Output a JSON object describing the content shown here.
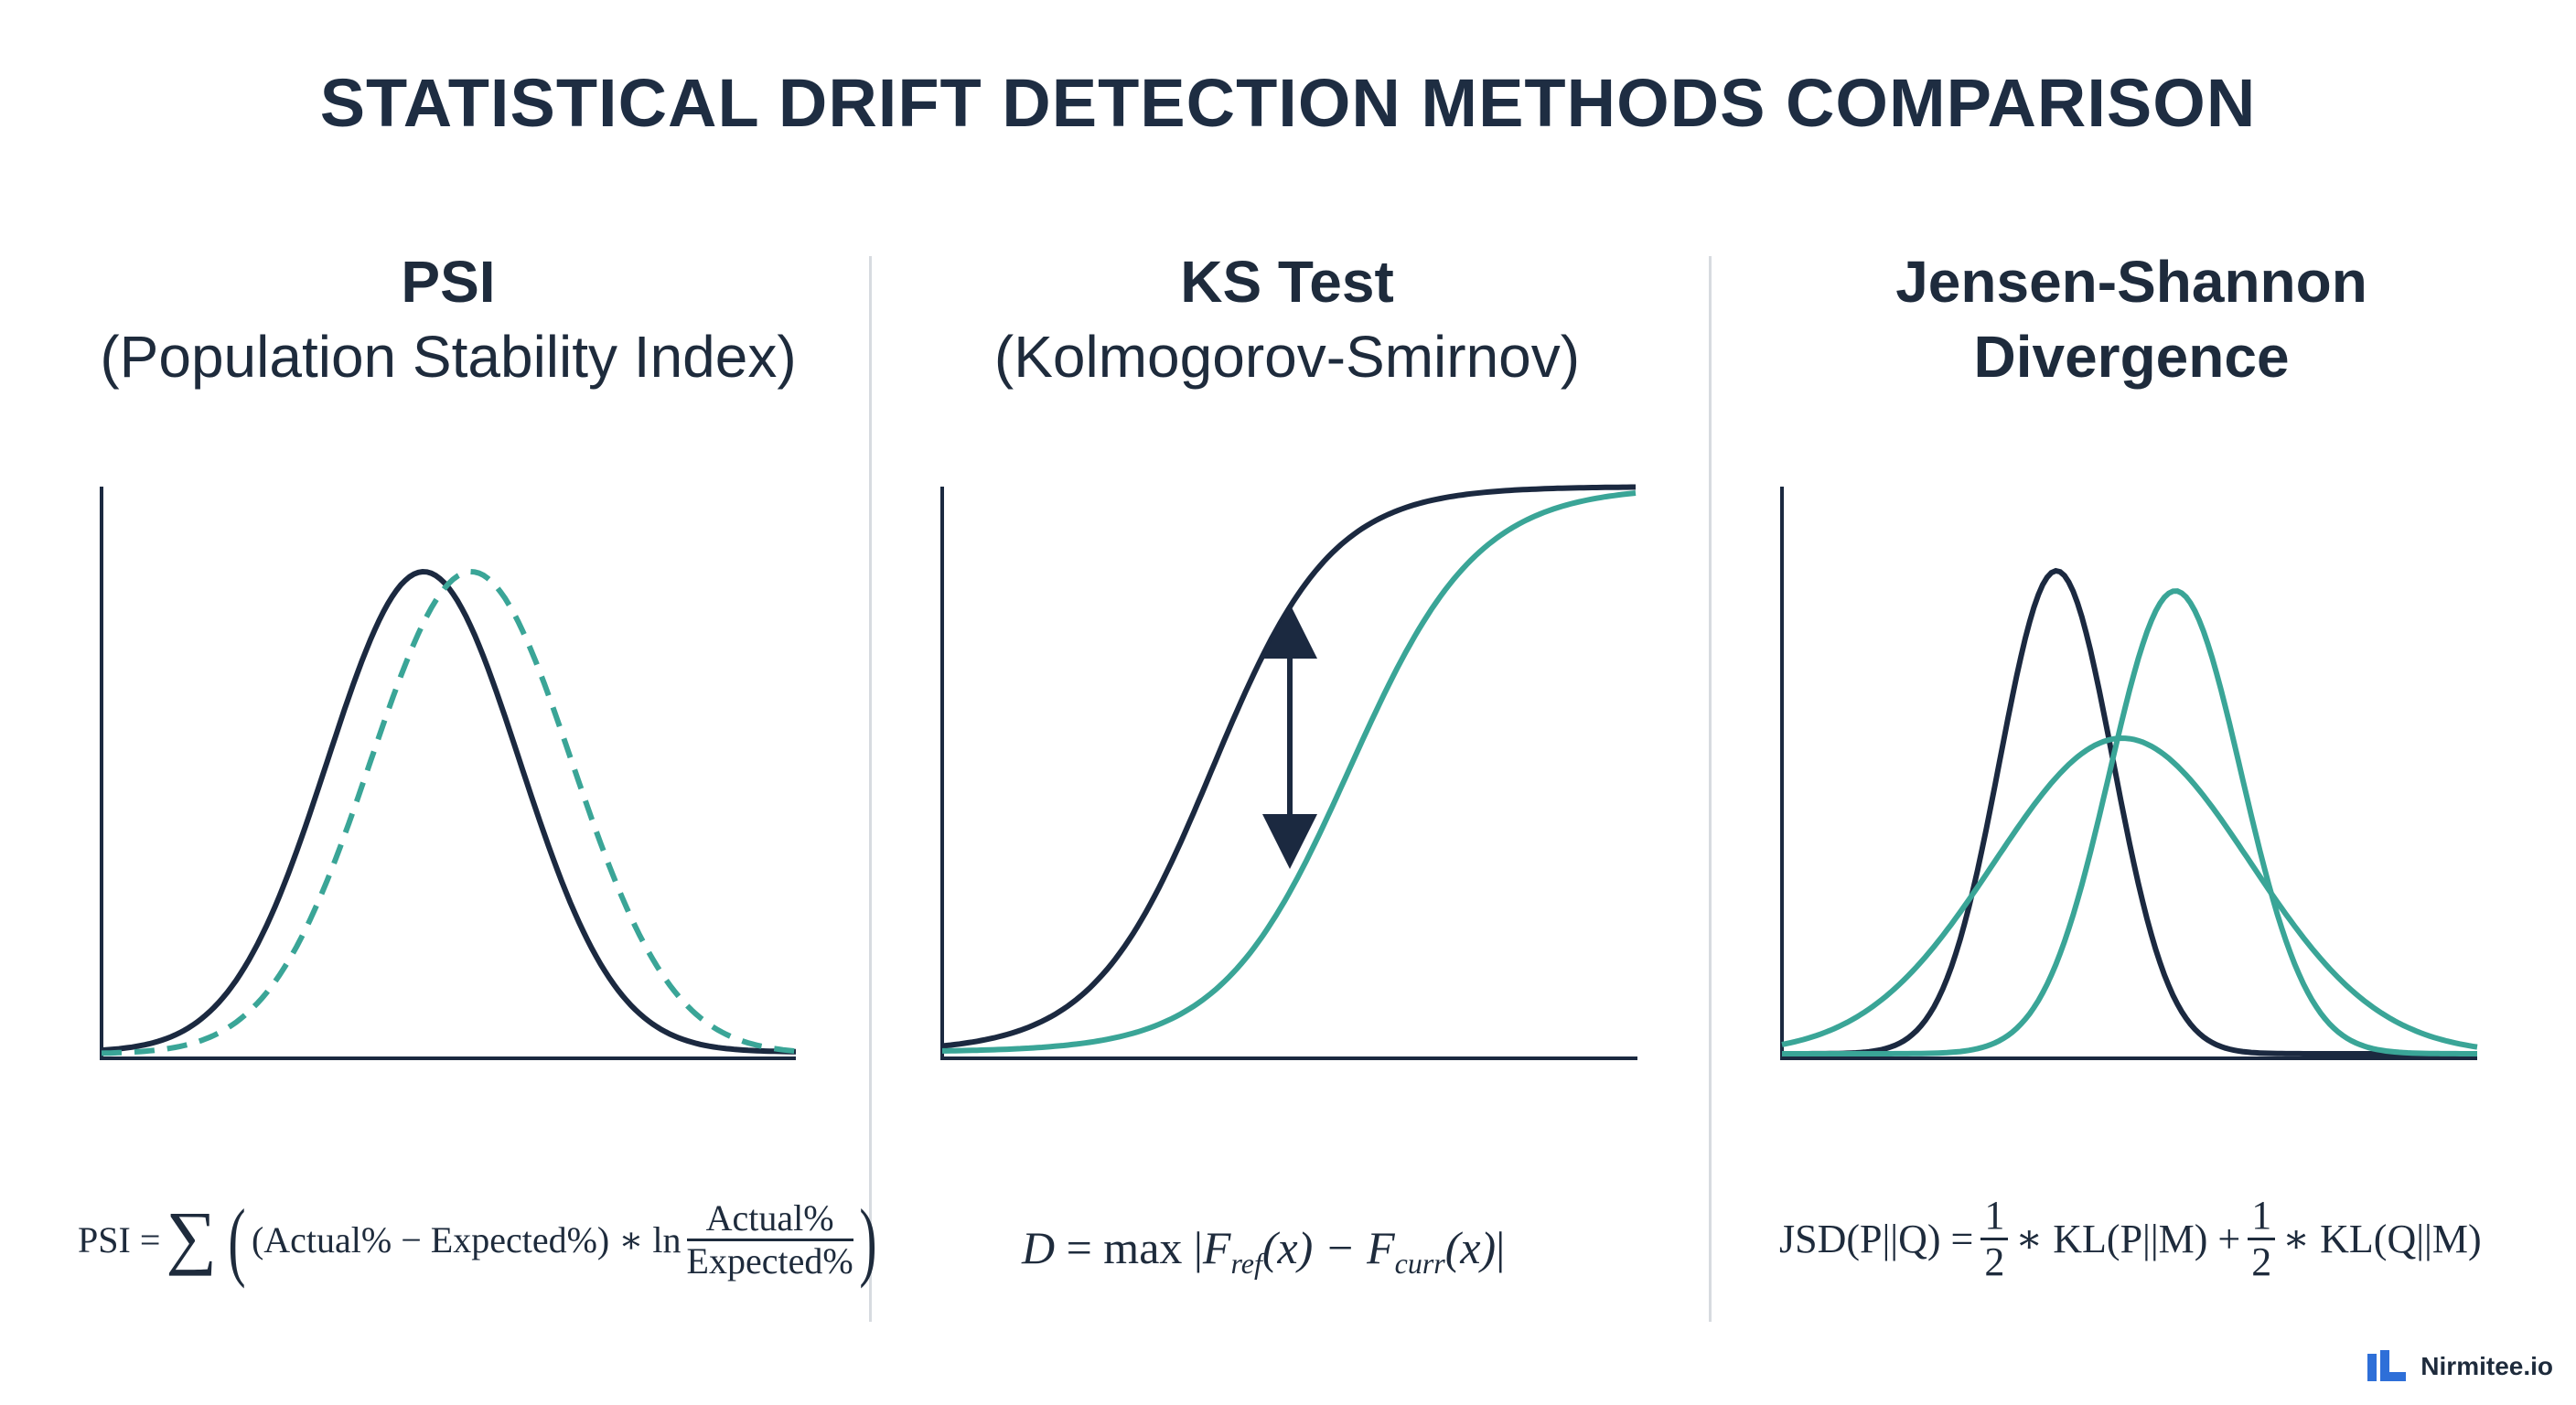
{
  "title": "STATISTICAL DRIFT DETECTION METHODS COMPARISON",
  "panels": [
    {
      "title_bold": "PSI",
      "title_normal": "(Population Stability Index)",
      "formula": {
        "lhs": "PSI =",
        "sum": "∑",
        "term": "(Actual% − Expected%) ∗ ln",
        "frac_num": "Actual%",
        "frac_den": "Expected%"
      }
    },
    {
      "title_bold": "KS Test",
      "title_normal": "(Kolmogorov-Smirnov)",
      "formula": {
        "lhs": "D",
        "eq": "= max",
        "f1": "F",
        "sub1": "ref",
        "x1": "(x) −",
        "f2": "F",
        "sub2": "curr",
        "x2": "(x)"
      }
    },
    {
      "title_bold": "Jensen-Shannon",
      "title_bold2": "Divergence",
      "formula": {
        "lhs": "JSD(P||Q) =",
        "half_num": "1",
        "half_den": "2",
        "term1": "∗ KL(P||M) +",
        "term2": "∗ KL(Q||M)"
      }
    }
  ],
  "colors": {
    "navy": "#1b2940",
    "teal": "#3aa597",
    "divider": "#d7dbe0"
  },
  "logo": {
    "text": "Nirmitee.io",
    "icon": "nirmitee-logo-icon"
  }
}
